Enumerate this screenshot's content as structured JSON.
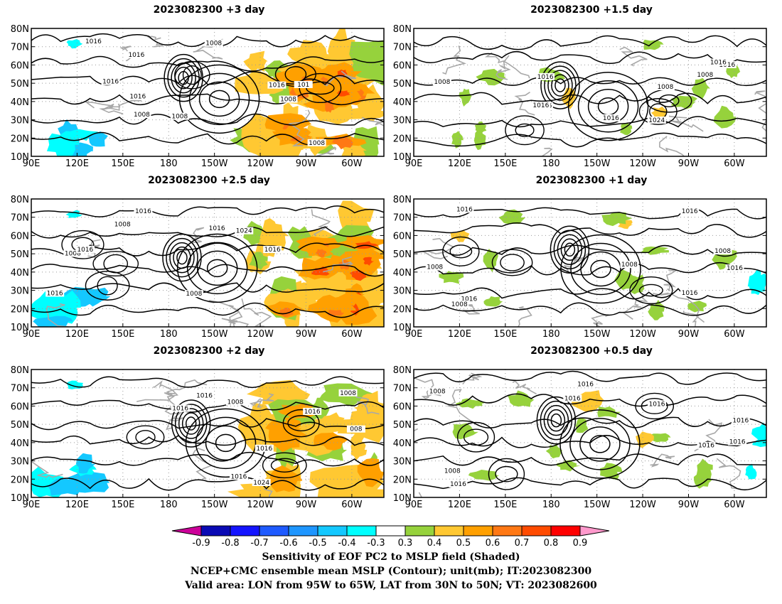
{
  "panels": [
    {
      "title": "2023082300 +3 day",
      "bias": "east-strong",
      "cyan": "west",
      "iso": [
        "1016",
        "1016",
        "1008",
        "1008",
        "1016",
        "1008",
        "1016",
        "1008",
        "1016",
        "101",
        "1008"
      ]
    },
    {
      "title": "2023082300 +1.5 day",
      "bias": "weak",
      "cyan": "none",
      "iso": [
        "1016",
        "1008",
        "1016",
        "1016",
        "1024",
        "1016",
        "1008",
        "1016",
        "1008",
        "1016"
      ]
    },
    {
      "title": "2023082300 +2.5 day",
      "bias": "east-strong",
      "cyan": "west",
      "iso": [
        "1008",
        "1016",
        "1016",
        "1008",
        "1016",
        "1024",
        "1008",
        "1016",
        "1016"
      ]
    },
    {
      "title": "2023082300 +1 day",
      "bias": "weak",
      "cyan": "east",
      "iso": [
        "1016",
        "1016",
        "1016",
        "1008",
        "1016",
        "1008",
        "1008",
        "1008",
        "1016"
      ]
    },
    {
      "title": "2023082300 +2 day",
      "bias": "east-medium",
      "cyan": "west",
      "iso": [
        "1016",
        "1008",
        "1016",
        "1016",
        "1024",
        "1016",
        "1008",
        "1016",
        "008"
      ]
    },
    {
      "title": "2023082300 +0.5 day",
      "bias": "weak",
      "cyan": "east",
      "iso": [
        "1016",
        "1016",
        "1016",
        "1008",
        "1016",
        "1016",
        "1016",
        "1016",
        "1008"
      ]
    }
  ],
  "axes": {
    "lat_labels": [
      "10N",
      "20N",
      "30N",
      "40N",
      "50N",
      "60N",
      "70N",
      "80N"
    ],
    "lon_labels": [
      "90E",
      "120E",
      "150E",
      "180",
      "150W",
      "120W",
      "90W",
      "60W"
    ]
  },
  "colorbar": {
    "ticks": [
      "-0.9",
      "-0.8",
      "-0.7",
      "-0.6",
      "-0.5",
      "-0.4",
      "-0.3",
      "0.3",
      "0.4",
      "0.5",
      "0.6",
      "0.7",
      "0.8",
      "0.9"
    ],
    "colors": [
      "#0a0ab4",
      "#1414ff",
      "#1e5aff",
      "#1e96ff",
      "#14c8ff",
      "#00ffff",
      "#ffffff",
      "#96d23c",
      "#ffc832",
      "#ffa000",
      "#ff7814",
      "#ff4b00",
      "#ff0000"
    ],
    "low_end": "#cc0099",
    "high_end": "#ff99cc"
  },
  "caption": {
    "line1": "Sensitivity of EOF PC2 to MSLP field (Shaded)",
    "line2": "NCEP+CMC ensemble mean MSLP (Contour); unit(mb); IT:2023082300",
    "line3": "Valid area: LON from 95W to 65W, LAT from 30N to 50N; VT: 2023082600"
  }
}
